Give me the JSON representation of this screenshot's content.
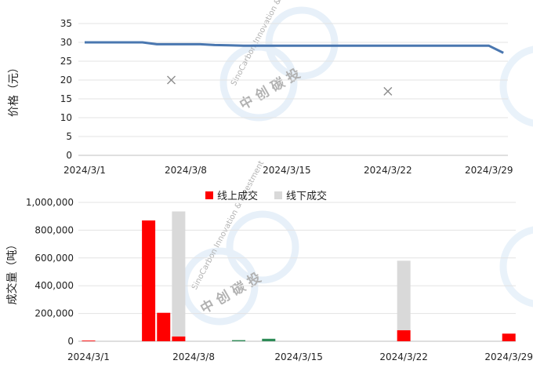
{
  "watermark": {
    "text_en": "SinoCarbon Innovation & Investment",
    "text_cn": "中 创 碳 投"
  },
  "chart_data": [
    {
      "type": "line",
      "ylabel": "价格（元）",
      "ylim": [
        0,
        35
      ],
      "yticks": [
        0,
        5,
        10,
        15,
        20,
        25,
        30,
        35
      ],
      "xticks": [
        "2024/3/1",
        "2024/3/8",
        "2024/3/15",
        "2024/3/22",
        "2024/3/29"
      ],
      "grid": true,
      "colors": {
        "line": "#4a77b0",
        "marker": "#8c8c8c"
      },
      "series": [
        {
          "type": "line",
          "x": [
            "2024/3/1",
            "2024/3/2",
            "2024/3/3",
            "2024/3/4",
            "2024/3/5",
            "2024/3/6",
            "2024/3/7",
            "2024/3/8",
            "2024/3/9",
            "2024/3/10",
            "2024/3/11",
            "2024/3/12",
            "2024/3/13",
            "2024/3/14",
            "2024/3/15",
            "2024/3/16",
            "2024/3/17",
            "2024/3/18",
            "2024/3/19",
            "2024/3/20",
            "2024/3/21",
            "2024/3/22",
            "2024/3/23",
            "2024/3/24",
            "2024/3/25",
            "2024/3/26",
            "2024/3/27",
            "2024/3/28",
            "2024/3/29",
            "2024/3/30"
          ],
          "y": [
            30,
            30,
            30,
            30,
            30,
            29.5,
            29.5,
            29.5,
            29.5,
            29.3,
            29.2,
            29.1,
            29.1,
            29.1,
            29.1,
            29.1,
            29.1,
            29.1,
            29.1,
            29.1,
            29.1,
            29.1,
            29.1,
            29.1,
            29.1,
            29.1,
            29.1,
            29.1,
            29.1,
            27.2
          ]
        },
        {
          "type": "scatter",
          "marker": "x",
          "x": [
            "2024/3/7",
            "2024/3/22"
          ],
          "y": [
            20,
            17
          ]
        }
      ]
    },
    {
      "type": "bar",
      "stacked": true,
      "ylabel": "成交量（吨）",
      "ylim": [
        0,
        1000000
      ],
      "yticks": [
        "0",
        "200,000",
        "400,000",
        "600,000",
        "800,000",
        "1,000,000"
      ],
      "xticks": [
        "2024/3/1",
        "2024/3/8",
        "2024/3/15",
        "2024/3/22",
        "2024/3/29"
      ],
      "legend_position": "top",
      "grid": true,
      "series": [
        {
          "name": "线上成交",
          "color": "#ff0000"
        },
        {
          "name": "线下成交",
          "color": "#d9d9d9"
        }
      ],
      "bars": [
        {
          "x": "2024/3/1",
          "online": 5000,
          "offline": 0,
          "color": "#ff0000"
        },
        {
          "x": "2024/3/5",
          "online": 870000,
          "offline": 0,
          "color": "#ff0000"
        },
        {
          "x": "2024/3/6",
          "online": 205000,
          "offline": 0,
          "color": "#ff0000"
        },
        {
          "x": "2024/3/7",
          "online": 35000,
          "offline": 900000,
          "color": "#ff0000"
        },
        {
          "x": "2024/3/11",
          "online": 8000,
          "offline": 0,
          "color": "#2e8b57"
        },
        {
          "x": "2024/3/13",
          "online": 18000,
          "offline": 0,
          "color": "#2e8b57"
        },
        {
          "x": "2024/3/22",
          "online": 80000,
          "offline": 500000,
          "color": "#ff0000"
        },
        {
          "x": "2024/3/29",
          "online": 55000,
          "offline": 0,
          "color": "#ff0000"
        }
      ]
    }
  ]
}
